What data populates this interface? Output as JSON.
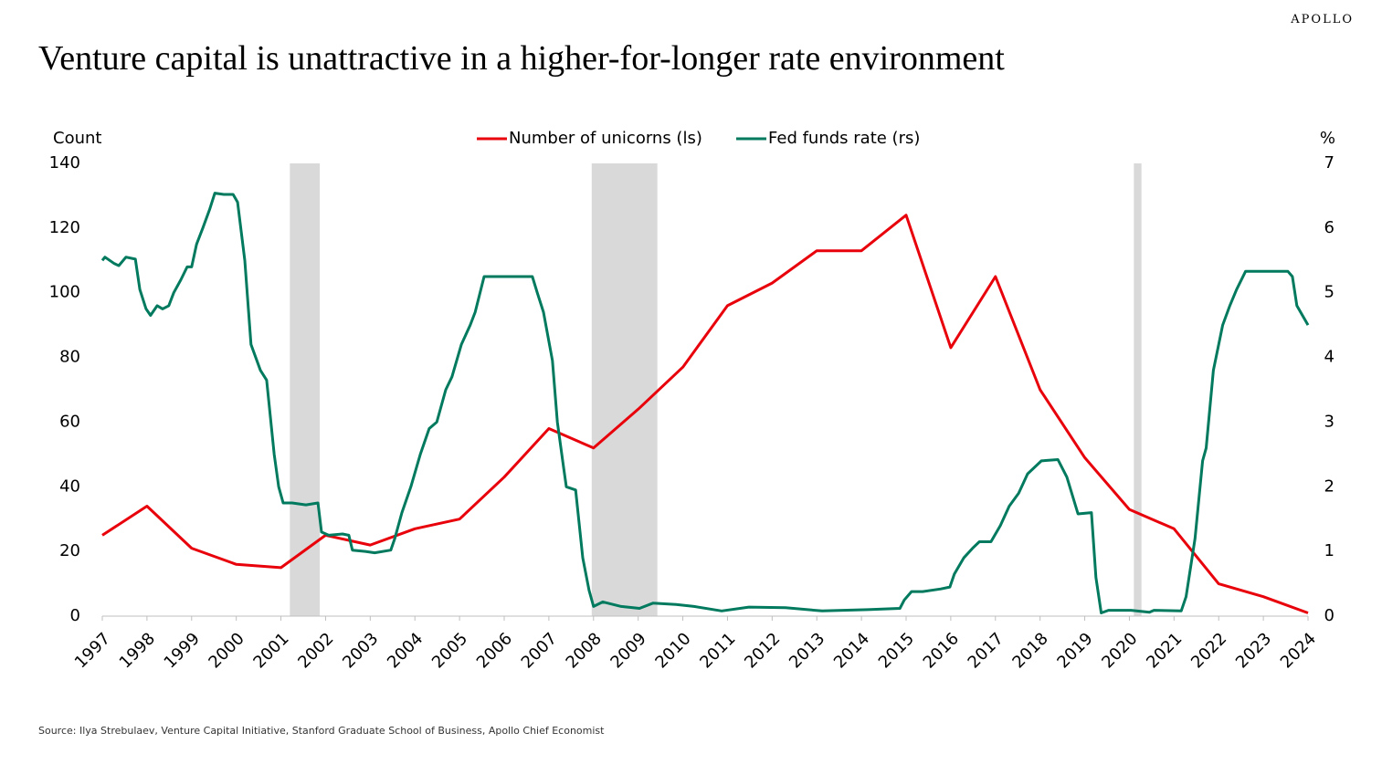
{
  "brand": "APOLLO",
  "chart_data": {
    "type": "line",
    "title": "Venture capital is unattractive in a higher-for-longer rate environment",
    "y_label": "Count",
    "y2_label": "%",
    "source": "Source: Ilya Strebulaev, Venture Capital Initiative, Stanford Graduate School of Business, Apollo Chief Economist",
    "xlim": [
      1997,
      2024
    ],
    "xticks": [
      1997,
      1998,
      1999,
      2000,
      2001,
      2002,
      2003,
      2004,
      2005,
      2006,
      2007,
      2008,
      2009,
      2010,
      2011,
      2012,
      2013,
      2014,
      2015,
      2016,
      2017,
      2018,
      2019,
      2020,
      2021,
      2022,
      2023,
      2024
    ],
    "ylim": [
      0,
      140
    ],
    "yticks": [
      0,
      20,
      40,
      60,
      80,
      100,
      120,
      140
    ],
    "y2lim": [
      0,
      7
    ],
    "y2ticks": [
      0,
      1,
      2,
      3,
      4,
      5,
      6,
      7
    ],
    "recession_color": "#d9d9d9",
    "recessions": [
      [
        2001.2,
        2001.87
      ],
      [
        2007.96,
        2009.43
      ],
      [
        2020.1,
        2020.27
      ]
    ],
    "series": [
      {
        "name": "Number of unicorns (ls)",
        "color": "#e8000b",
        "x": [
          1997,
          1998,
          1999,
          2000,
          2001,
          2002,
          2003,
          2004,
          2005,
          2006,
          2007,
          2008,
          2009,
          2010,
          2011,
          2012,
          2013,
          2014,
          2015,
          2016,
          2017,
          2018,
          2019,
          2020,
          2021,
          2022,
          2023,
          2024
        ],
        "values": [
          25,
          34,
          21,
          16,
          15,
          25,
          22,
          27,
          30,
          43,
          58,
          52,
          64,
          77,
          96,
          103,
          113,
          113,
          124,
          83,
          105,
          70,
          49,
          33,
          27,
          10,
          6,
          1
        ]
      },
      {
        "name": "Fed funds rate (rs)",
        "color": "#007a5e",
        "axis": "y2",
        "x": [
          1997.0,
          1997.06,
          1997.27,
          1997.37,
          1997.53,
          1997.74,
          1997.84,
          1997.98,
          1998.08,
          1998.23,
          1998.35,
          1998.49,
          1998.6,
          1998.76,
          1998.9,
          1999.0,
          1999.11,
          1999.25,
          1999.41,
          1999.52,
          1999.72,
          1999.93,
          2000.03,
          2000.19,
          2000.33,
          2000.54,
          2000.68,
          2000.85,
          2000.95,
          2001.05,
          2001.25,
          2001.56,
          2001.83,
          2001.91,
          2002.07,
          2002.38,
          2002.52,
          2002.6,
          2002.89,
          2003.1,
          2003.46,
          2003.55,
          2003.71,
          2003.91,
          2004.12,
          2004.32,
          2004.49,
          2004.69,
          2004.83,
          2005.04,
          2005.24,
          2005.35,
          2005.55,
          2005.96,
          2006.37,
          2006.63,
          2006.74,
          2006.88,
          2007.08,
          2007.19,
          2007.33,
          2007.39,
          2007.6,
          2007.76,
          2007.9,
          2008.0,
          2008.21,
          2008.62,
          2009.03,
          2009.33,
          2009.85,
          2010.25,
          2010.87,
          2011.48,
          2012.3,
          2013.12,
          2014.14,
          2014.86,
          2014.96,
          2015.12,
          2015.37,
          2015.78,
          2015.98,
          2016.08,
          2016.29,
          2016.49,
          2016.64,
          2016.9,
          2017.11,
          2017.31,
          2017.52,
          2017.72,
          2018.03,
          2018.4,
          2018.6,
          2018.85,
          2019.15,
          2019.25,
          2019.37,
          2019.53,
          2020.04,
          2020.45,
          2020.55,
          2021.16,
          2021.27,
          2021.47,
          2021.64,
          2021.72,
          2021.88,
          2022.09,
          2022.25,
          2022.4,
          2022.6,
          2023.55,
          2023.65,
          2023.75,
          2024.0
        ],
        "values": [
          5.5,
          5.55,
          5.45,
          5.42,
          5.55,
          5.52,
          5.05,
          4.75,
          4.65,
          4.8,
          4.75,
          4.8,
          5.0,
          5.2,
          5.4,
          5.4,
          5.75,
          6.0,
          6.3,
          6.54,
          6.52,
          6.52,
          6.4,
          5.5,
          4.2,
          3.8,
          3.65,
          2.5,
          2.0,
          1.75,
          1.75,
          1.72,
          1.75,
          1.3,
          1.25,
          1.27,
          1.25,
          1.02,
          1.0,
          0.98,
          1.02,
          1.2,
          1.6,
          2.0,
          2.5,
          2.9,
          3.0,
          3.5,
          3.7,
          4.2,
          4.5,
          4.7,
          5.25,
          5.25,
          5.25,
          5.25,
          5.0,
          4.7,
          3.95,
          3.0,
          2.3,
          2.0,
          1.95,
          0.9,
          0.4,
          0.15,
          0.22,
          0.15,
          0.12,
          0.2,
          0.18,
          0.15,
          0.08,
          0.14,
          0.13,
          0.08,
          0.1,
          0.12,
          0.25,
          0.38,
          0.38,
          0.42,
          0.45,
          0.65,
          0.9,
          1.05,
          1.15,
          1.15,
          1.4,
          1.7,
          1.9,
          2.2,
          2.4,
          2.42,
          2.15,
          1.58,
          1.6,
          0.6,
          0.05,
          0.09,
          0.09,
          0.06,
          0.09,
          0.08,
          0.3,
          1.2,
          2.4,
          2.6,
          3.8,
          4.5,
          4.8,
          5.05,
          5.33,
          5.33,
          5.25,
          4.8,
          4.5
        ]
      }
    ]
  }
}
